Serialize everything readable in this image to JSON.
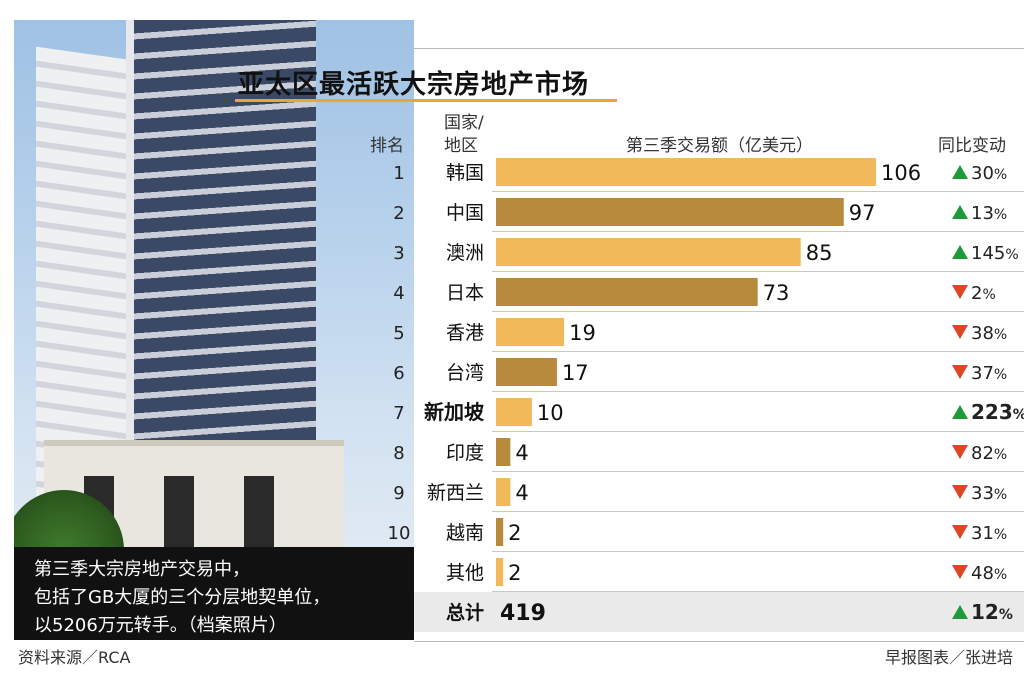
{
  "chart_data": {
    "type": "bar",
    "title": "亚太区最活跃大宗房地产市场",
    "columns": {
      "rank": "排名",
      "region_line1": "国家/",
      "region_line2": "地区",
      "value": "第三季交易额（亿美元）",
      "change": "同比变动"
    },
    "rows": [
      {
        "rank": "1",
        "region": "韩国",
        "value": 106,
        "change": "30",
        "dir": "up",
        "highlight": false,
        "bar": "light"
      },
      {
        "rank": "2",
        "region": "中国",
        "value": 97,
        "change": "13",
        "dir": "up",
        "highlight": false,
        "bar": "dark"
      },
      {
        "rank": "3",
        "region": "澳洲",
        "value": 85,
        "change": "145",
        "dir": "up",
        "highlight": false,
        "bar": "light"
      },
      {
        "rank": "4",
        "region": "日本",
        "value": 73,
        "change": "2",
        "dir": "down",
        "highlight": false,
        "bar": "dark"
      },
      {
        "rank": "5",
        "region": "香港",
        "value": 19,
        "change": "38",
        "dir": "down",
        "highlight": false,
        "bar": "light"
      },
      {
        "rank": "6",
        "region": "台湾",
        "value": 17,
        "change": "37",
        "dir": "down",
        "highlight": false,
        "bar": "dark"
      },
      {
        "rank": "7",
        "region": "新加坡",
        "value": 10,
        "change": "223",
        "dir": "up",
        "highlight": true,
        "bar": "light"
      },
      {
        "rank": "8",
        "region": "印度",
        "value": 4,
        "change": "82",
        "dir": "down",
        "highlight": false,
        "bar": "dark"
      },
      {
        "rank": "9",
        "region": "新西兰",
        "value": 4,
        "change": "33",
        "dir": "down",
        "highlight": false,
        "bar": "light"
      },
      {
        "rank": "10",
        "region": "越南",
        "value": 2,
        "change": "31",
        "dir": "down",
        "highlight": false,
        "bar": "dark"
      },
      {
        "rank": "",
        "region": "其他",
        "value": 2,
        "change": "48",
        "dir": "down",
        "highlight": false,
        "bar": "light"
      }
    ],
    "total": {
      "label": "总计",
      "value": "419",
      "change": "12",
      "dir": "up"
    },
    "percent_sign": "%",
    "colors": {
      "bar_light": "#f1b95a",
      "bar_dark": "#b88a3c",
      "up": "#1f9a3a",
      "down": "#e0452a",
      "total_bg": "#eaeaea",
      "divider": "#c8c8c8",
      "accent": "#e9a53c"
    }
  },
  "photo_caption": {
    "line1": "第三季大宗房地产交易中，",
    "line2": "包括了GB大厦的三个分层地契单位，",
    "line3": "以5206万元转手。（档案照片）"
  },
  "source_left": "资料来源／RCA",
  "source_right": "早报图表／张进培"
}
